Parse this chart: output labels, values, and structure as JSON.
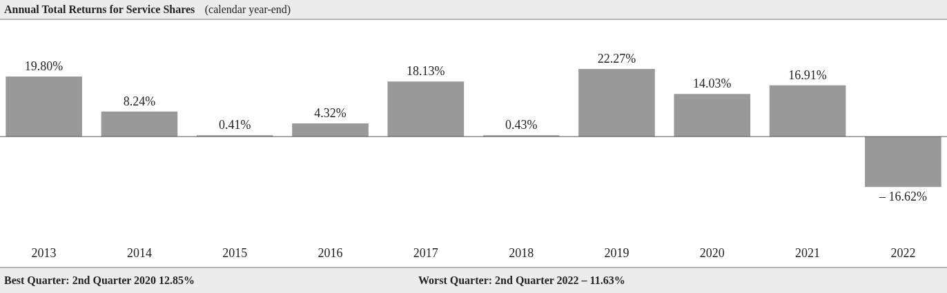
{
  "chart_data": {
    "type": "bar",
    "title": "Annual Total Returns for Service Shares",
    "subtitle": "(calendar year-end)",
    "categories": [
      "2013",
      "2014",
      "2015",
      "2016",
      "2017",
      "2018",
      "2019",
      "2020",
      "2021",
      "2022"
    ],
    "values": [
      19.8,
      8.24,
      0.41,
      4.32,
      18.13,
      0.43,
      22.27,
      14.03,
      16.91,
      -16.62
    ],
    "value_labels": [
      "19.80%",
      "8.24%",
      "0.41%",
      "4.32%",
      "18.13%",
      "0.43%",
      "22.27%",
      "14.03%",
      "16.91%",
      "– 16.62%"
    ],
    "color": "#999999",
    "grid": false,
    "annotations": [
      "Best Quarter:  2nd Quarter 2020  12.85%",
      "Worst Quarter:  2nd Quarter 2022  – 11.63%"
    ]
  }
}
